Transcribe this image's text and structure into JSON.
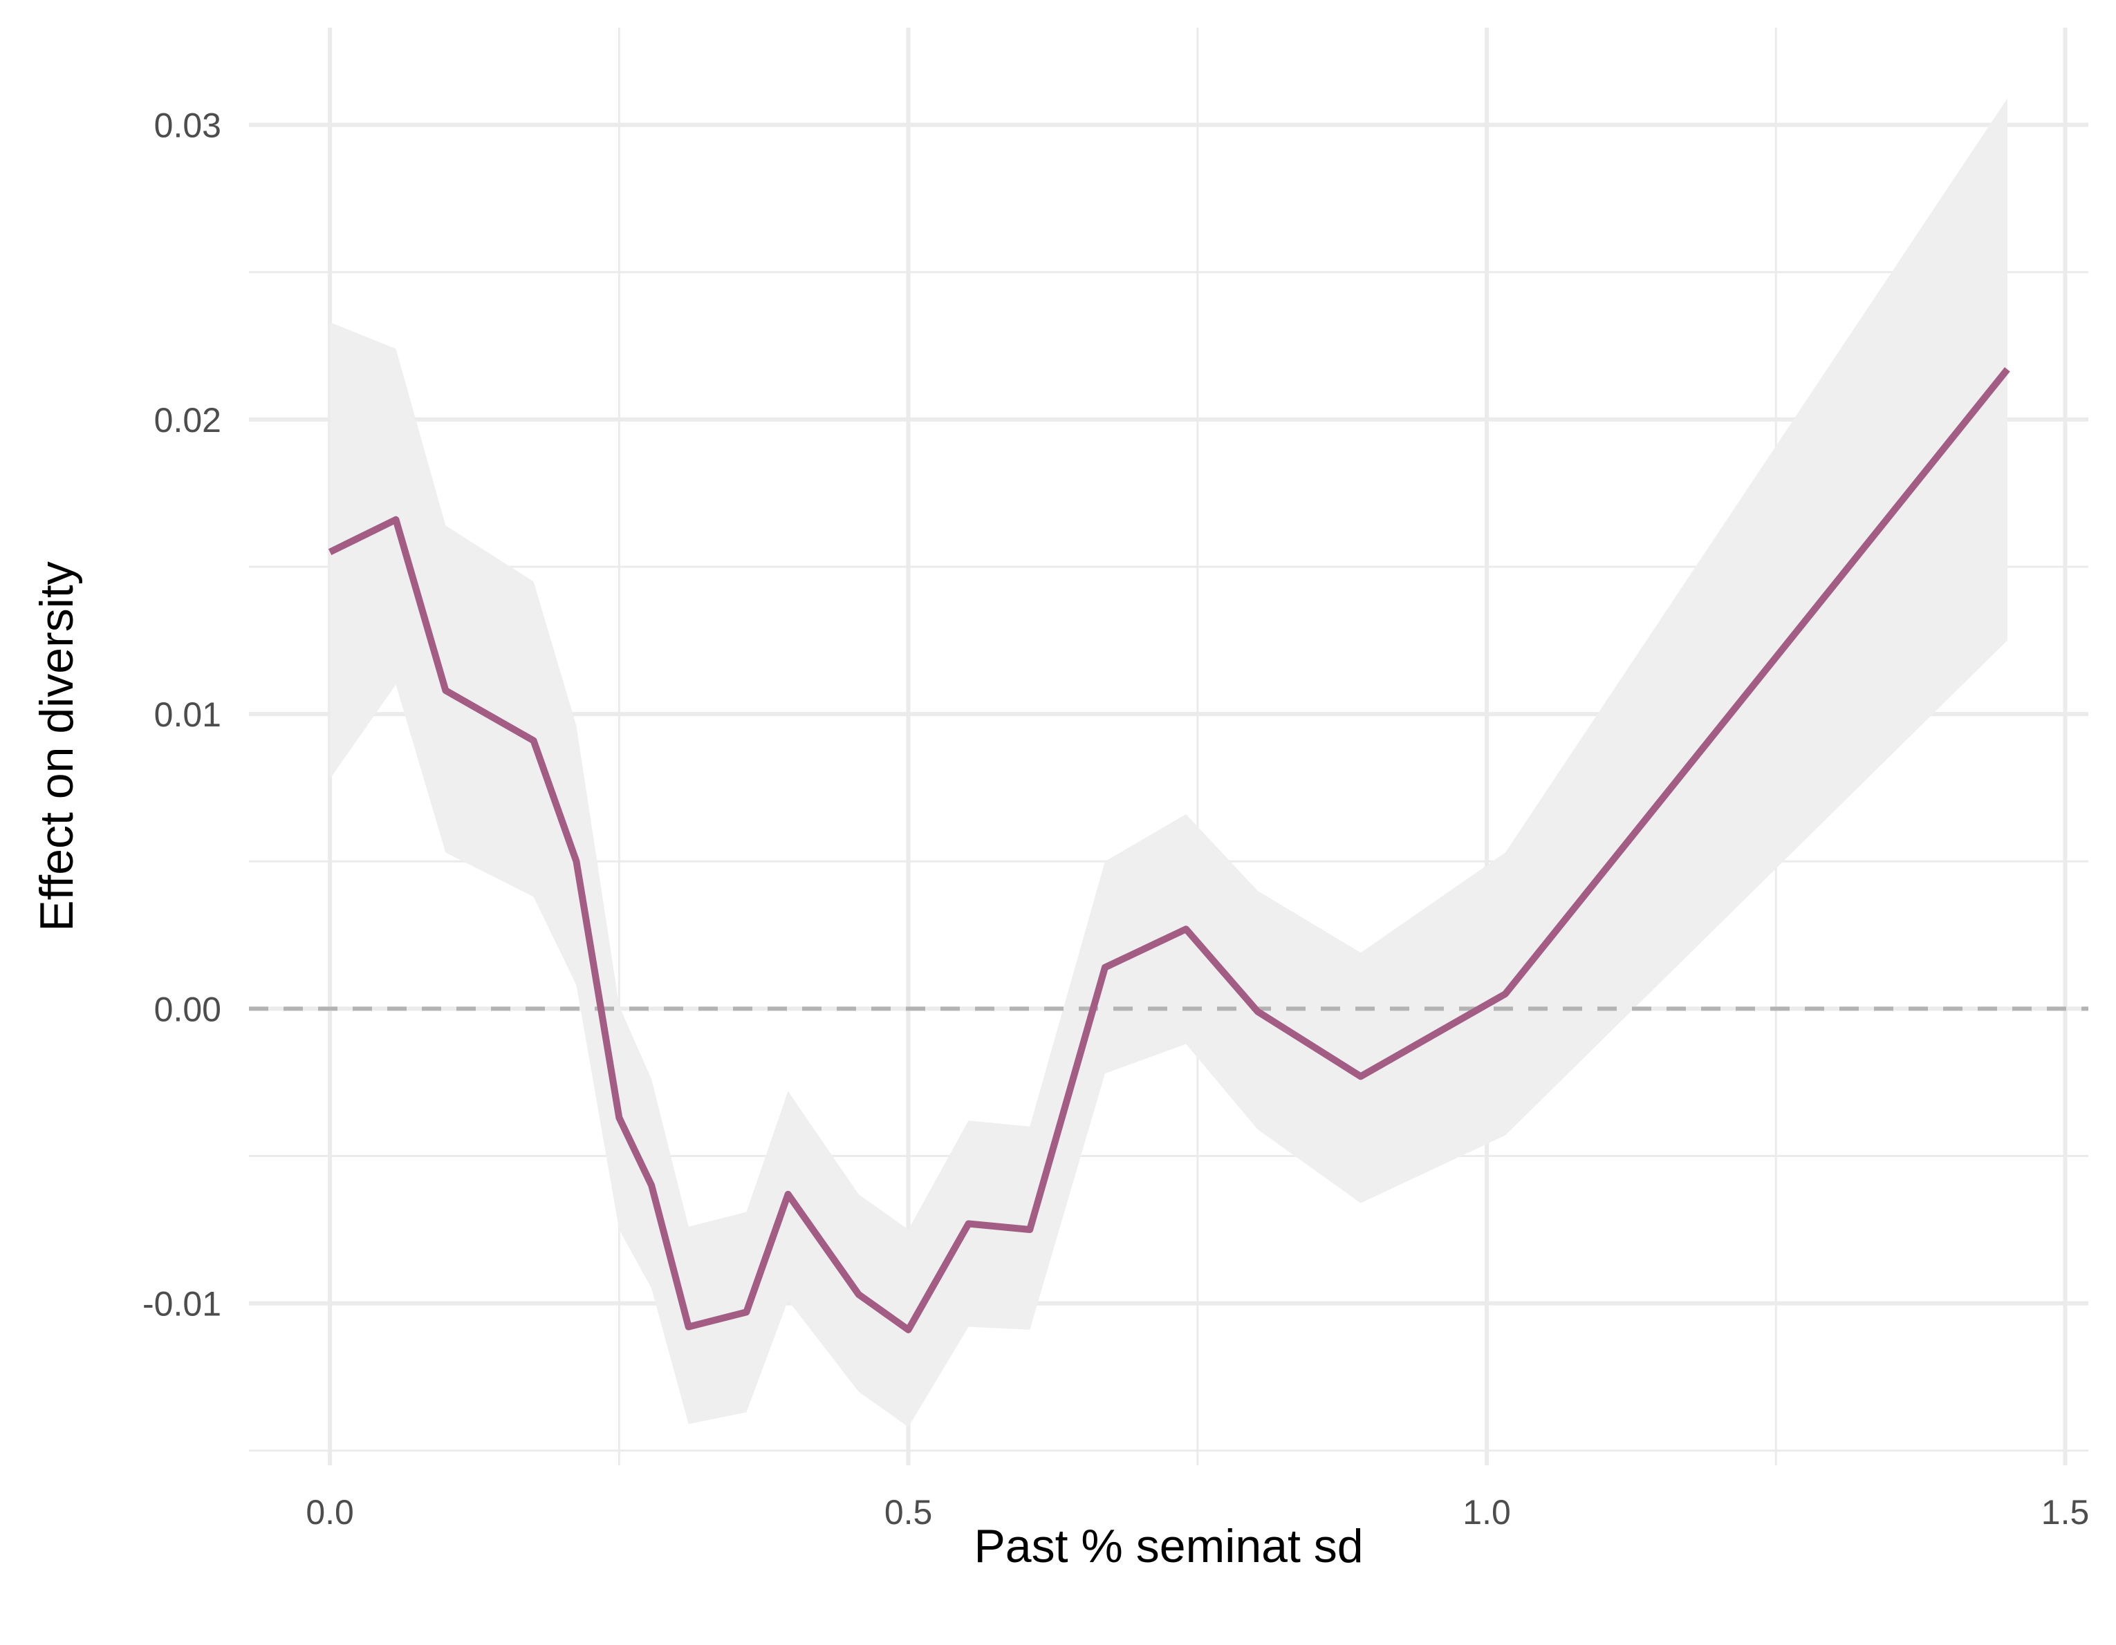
{
  "chart_data": {
    "type": "line",
    "title": "",
    "xlabel": "Past % seminat sd",
    "ylabel": "Effect on diversity",
    "xlim": [
      -0.07,
      1.52
    ],
    "ylim": [
      -0.0155,
      0.0333
    ],
    "x_ticks": [
      0.0,
      0.5,
      1.0,
      1.5
    ],
    "x_tick_labels": [
      "0.0",
      "0.5",
      "1.0",
      "1.5"
    ],
    "y_ticks": [
      -0.01,
      0.0,
      0.01,
      0.02,
      0.03
    ],
    "y_tick_labels": [
      "-0.01",
      "0.00",
      "0.01",
      "0.02",
      "0.03"
    ],
    "grid": true,
    "legend": "none",
    "reference_line": {
      "y": 0,
      "style": "dashed"
    },
    "series": [
      {
        "x": [
          0.0,
          0.057,
          0.1,
          0.176,
          0.213,
          0.25,
          0.278,
          0.31,
          0.36,
          0.396,
          0.457,
          0.5,
          0.552,
          0.605,
          0.67,
          0.74,
          0.802,
          0.891,
          1.016,
          1.45
        ],
        "y": [
          0.0155,
          0.0166,
          0.0108,
          0.0091,
          0.005,
          -0.0037,
          -0.006,
          -0.0108,
          -0.0103,
          -0.0063,
          -0.0097,
          -0.0109,
          -0.0073,
          -0.0075,
          0.0014,
          0.0027,
          -0.0001,
          -0.0023,
          0.0005,
          0.0217
        ],
        "lower": [
          0.0078,
          0.011,
          0.0053,
          0.0038,
          0.0008,
          -0.0075,
          -0.0095,
          -0.0141,
          -0.0137,
          -0.0099,
          -0.013,
          -0.0142,
          -0.0108,
          -0.0109,
          -0.0022,
          -0.0012,
          -0.0041,
          -0.0066,
          -0.0043,
          0.0125
        ],
        "upper": [
          0.0233,
          0.0224,
          0.0164,
          0.0145,
          0.0096,
          0.0001,
          -0.0024,
          -0.0074,
          -0.0069,
          -0.0028,
          -0.0063,
          -0.0075,
          -0.0038,
          -0.004,
          0.005,
          0.0066,
          0.004,
          0.0019,
          0.0053,
          0.0309
        ]
      }
    ]
  },
  "colors": {
    "line": "#a35d84",
    "ribbon": "#efefef",
    "grid": "#ebebeb",
    "reference_line": "#b3b3b3"
  }
}
